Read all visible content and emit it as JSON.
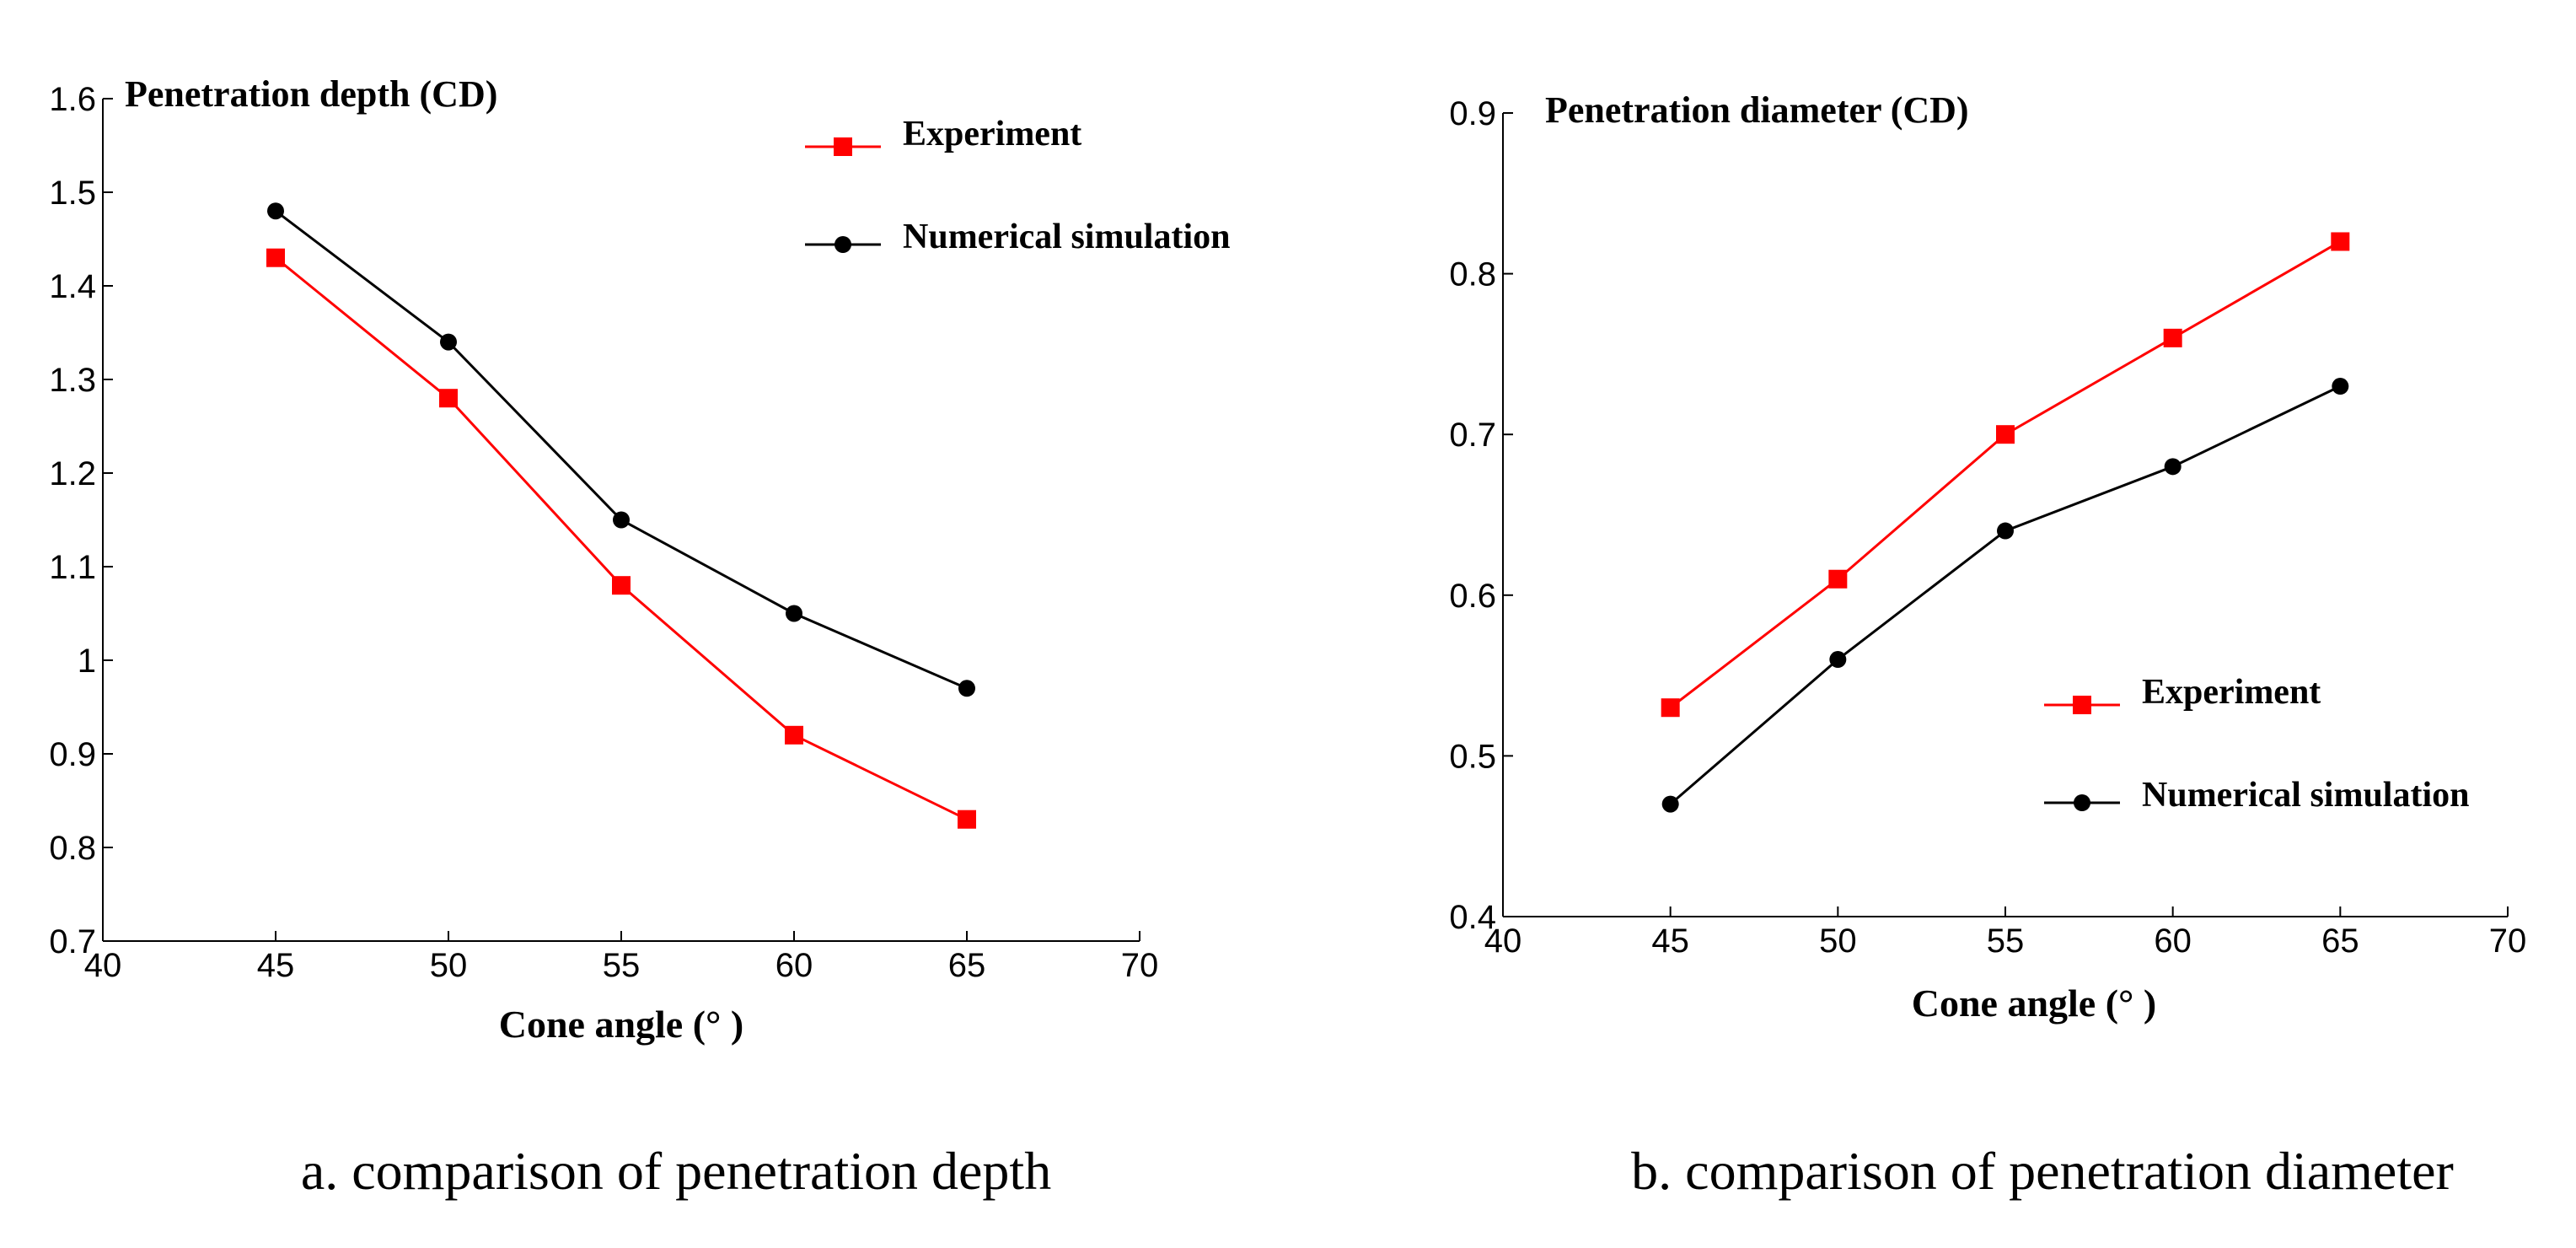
{
  "chart_data": [
    {
      "type": "line",
      "title": "",
      "ylabel": "Penetration depth (CD)",
      "xlabel": "Cone angle (°  )",
      "caption": "a. comparison of penetration depth",
      "x": [
        45,
        50,
        55,
        60,
        65
      ],
      "xlim": [
        40,
        70
      ],
      "ylim": [
        0.7,
        1.6
      ],
      "xticks": [
        "40",
        "45",
        "50",
        "55",
        "60",
        "65",
        "70"
      ],
      "yticks": [
        "0.7",
        "0.8",
        "0.9",
        "1",
        "1.1",
        "1.2",
        "1.3",
        "1.4",
        "1.5",
        "1.6"
      ],
      "legend_position": "top-right",
      "grid": false,
      "series": [
        {
          "name": "Experiment",
          "color": "#ff0000",
          "marker": "square",
          "values": [
            1.43,
            1.28,
            1.08,
            0.92,
            0.83
          ]
        },
        {
          "name": "Numerical simulation",
          "color": "#000000",
          "marker": "circle",
          "values": [
            1.48,
            1.34,
            1.15,
            1.05,
            0.97
          ]
        }
      ]
    },
    {
      "type": "line",
      "title": "",
      "ylabel": "Penetration diameter (CD)",
      "xlabel": "Cone angle (°  )",
      "caption": "b. comparison of penetration diameter",
      "x": [
        45,
        50,
        55,
        60,
        65
      ],
      "xlim": [
        40,
        70
      ],
      "ylim": [
        0.4,
        0.9
      ],
      "xticks": [
        "40",
        "45",
        "50",
        "55",
        "60",
        "65",
        "70"
      ],
      "yticks": [
        "0.4",
        "0.5",
        "0.6",
        "0.7",
        "0.8",
        "0.9"
      ],
      "legend_position": "lower-right",
      "grid": false,
      "series": [
        {
          "name": "Experiment",
          "color": "#ff0000",
          "marker": "square",
          "values": [
            0.53,
            0.61,
            0.7,
            0.76,
            0.82
          ]
        },
        {
          "name": "Numerical simulation",
          "color": "#000000",
          "marker": "circle",
          "values": [
            0.47,
            0.56,
            0.64,
            0.68,
            0.73
          ]
        }
      ]
    }
  ]
}
